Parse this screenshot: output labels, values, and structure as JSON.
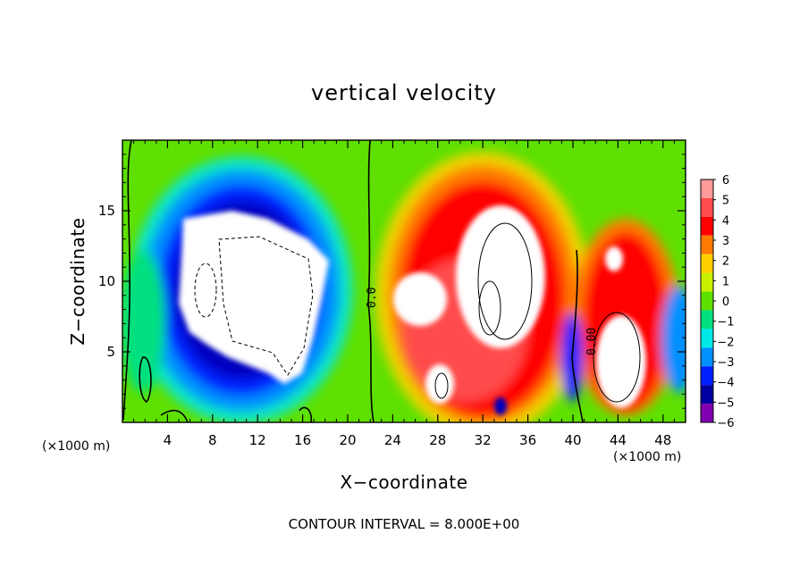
{
  "chart_data": {
    "type": "heatmap",
    "title": "vertical velocity",
    "xlabel": "X−coordinate",
    "ylabel": "Z−coordinate",
    "x_unit": "(×1000 m)",
    "z_unit": "(×1000 m)",
    "xlim": [
      0,
      50
    ],
    "ylim": [
      0,
      20
    ],
    "x_ticks": [
      4,
      8,
      12,
      16,
      20,
      24,
      28,
      32,
      36,
      40,
      44,
      48
    ],
    "x_tick_labels": [
      "4",
      "8",
      "12",
      "16",
      "20",
      "24",
      "28",
      "32",
      "36",
      "40",
      "44",
      "48"
    ],
    "y_ticks": [
      5,
      10,
      15
    ],
    "y_tick_labels": [
      "5",
      "10",
      "15"
    ],
    "colorbar": {
      "levels": [
        6,
        5,
        4,
        3,
        2,
        1,
        0,
        -1,
        -2,
        -3,
        -4,
        -5,
        -6
      ],
      "labels": [
        "6",
        "5",
        "4",
        "3",
        "2",
        "1",
        "0",
        "−1",
        "−2",
        "−3",
        "−4",
        "−5",
        "−6"
      ],
      "colors": [
        "#ff9a9a",
        "#ff4c4c",
        "#ff0000",
        "#ff7a00",
        "#ffd000",
        "#c8f000",
        "#5ee000",
        "#00e080",
        "#00e8e8",
        "#0090ff",
        "#0020ff",
        "#0000a0",
        "#8000b0"
      ]
    },
    "contour_labels": [
      "0.0",
      "0.00"
    ],
    "contour_interval_note": "CONTOUR INTERVAL = 8.000E+00",
    "features": [
      {
        "kind": "downdraft",
        "x_range": [
          5,
          19
        ],
        "z_range": [
          3,
          15
        ]
      },
      {
        "kind": "updraft",
        "x_range": [
          25,
          38
        ],
        "z_range": [
          1,
          17
        ]
      },
      {
        "kind": "updraft",
        "x_range": [
          42,
          48
        ],
        "z_range": [
          1,
          12
        ]
      }
    ]
  }
}
